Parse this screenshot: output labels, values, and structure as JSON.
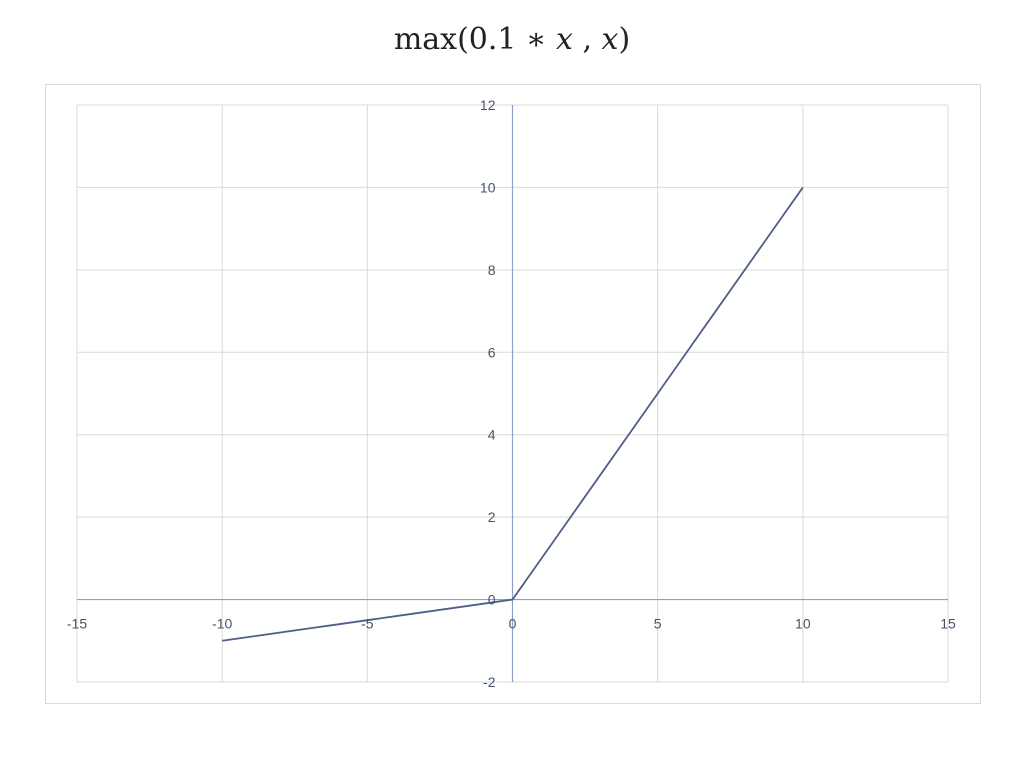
{
  "chart_data": {
    "type": "line",
    "title": "max(0.1 ∗ x , x)",
    "title_parts": [
      "max(0.1 ∗ ",
      "x",
      " , ",
      "x",
      ")"
    ],
    "xlabel": "",
    "ylabel": "",
    "xlim": [
      -15,
      15
    ],
    "ylim": [
      -2,
      12
    ],
    "x_ticks": [
      -15,
      -10,
      -5,
      0,
      5,
      10,
      15
    ],
    "y_ticks": [
      -2,
      0,
      2,
      4,
      6,
      8,
      10,
      12
    ],
    "x_tick_labels": [
      "-15",
      "-10",
      "-5",
      "0",
      "5",
      "10",
      "15"
    ],
    "y_tick_labels": [
      "-2",
      "0",
      "2",
      "4",
      "6",
      "8",
      "10",
      "12"
    ],
    "grid": true,
    "legend": "none",
    "series": [
      {
        "color": "#4e5f88",
        "x": [
          -10,
          -9,
          -8,
          -7,
          -6,
          -5,
          -4,
          -3,
          -2,
          -1,
          0,
          1,
          2,
          3,
          4,
          5,
          6,
          7,
          8,
          9,
          10
        ],
        "y": [
          -1,
          -0.9,
          -0.8,
          -0.7,
          -0.6,
          -0.5,
          -0.4,
          -0.3,
          -0.2,
          -0.1,
          0,
          1,
          2,
          3,
          4,
          5,
          6,
          7,
          8,
          9,
          10
        ]
      }
    ],
    "colors": {
      "grid": "#d9d9d9",
      "axis": "#8ea0c8",
      "tick_text": "#44546a"
    }
  }
}
